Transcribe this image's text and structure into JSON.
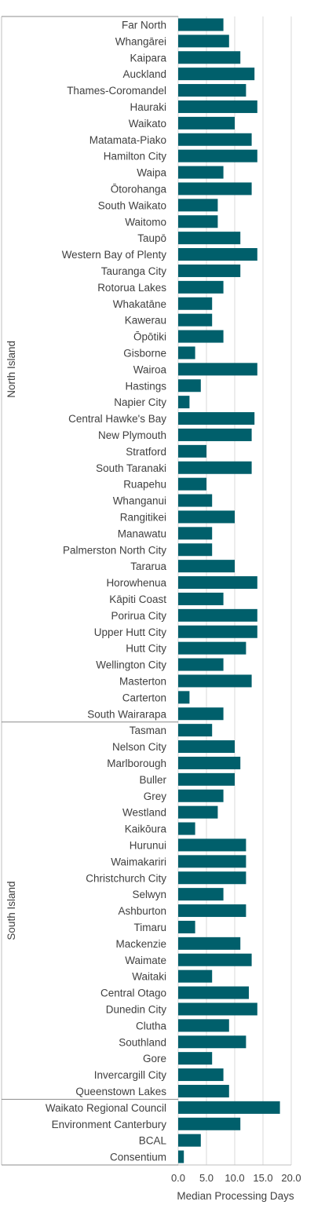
{
  "chart_data": {
    "type": "bar",
    "orientation": "horizontal",
    "xlabel": "Median Processing Days",
    "xlim": [
      0,
      20
    ],
    "xticks": [
      "0.0",
      "5.0",
      "10.0",
      "15.0",
      "20.0"
    ],
    "grid": true,
    "bar_color": "#005f6b",
    "groups": [
      {
        "label": "North Island",
        "items": [
          {
            "name": "Far North",
            "value": 8
          },
          {
            "name": "Whangārei",
            "value": 9
          },
          {
            "name": "Kaipara",
            "value": 11
          },
          {
            "name": "Auckland",
            "value": 13.5
          },
          {
            "name": "Thames-Coromandel",
            "value": 12
          },
          {
            "name": "Hauraki",
            "value": 14
          },
          {
            "name": "Waikato",
            "value": 10
          },
          {
            "name": "Matamata-Piako",
            "value": 13
          },
          {
            "name": "Hamilton City",
            "value": 14
          },
          {
            "name": "Waipa",
            "value": 8
          },
          {
            "name": "Ōtorohanga",
            "value": 13
          },
          {
            "name": "South Waikato",
            "value": 7
          },
          {
            "name": "Waitomo",
            "value": 7
          },
          {
            "name": "Taupō",
            "value": 11
          },
          {
            "name": "Western Bay of Plenty",
            "value": 14
          },
          {
            "name": "Tauranga City",
            "value": 11
          },
          {
            "name": "Rotorua Lakes",
            "value": 8
          },
          {
            "name": "Whakatāne",
            "value": 6
          },
          {
            "name": "Kawerau",
            "value": 6
          },
          {
            "name": "Ōpōtiki",
            "value": 8
          },
          {
            "name": "Gisborne",
            "value": 3
          },
          {
            "name": "Wairoa",
            "value": 14
          },
          {
            "name": "Hastings",
            "value": 4
          },
          {
            "name": "Napier City",
            "value": 2
          },
          {
            "name": "Central Hawke's Bay",
            "value": 13.5
          },
          {
            "name": "New Plymouth",
            "value": 13
          },
          {
            "name": "Stratford",
            "value": 5
          },
          {
            "name": "South Taranaki",
            "value": 13
          },
          {
            "name": "Ruapehu",
            "value": 5
          },
          {
            "name": "Whanganui",
            "value": 6
          },
          {
            "name": "Rangitikei",
            "value": 10
          },
          {
            "name": "Manawatu",
            "value": 6
          },
          {
            "name": "Palmerston North City",
            "value": 6
          },
          {
            "name": "Tararua",
            "value": 10
          },
          {
            "name": "Horowhenua",
            "value": 14
          },
          {
            "name": "Kāpiti Coast",
            "value": 8
          },
          {
            "name": "Porirua City",
            "value": 14
          },
          {
            "name": "Upper Hutt City",
            "value": 14
          },
          {
            "name": "Hutt City",
            "value": 12
          },
          {
            "name": "Wellington City",
            "value": 8
          },
          {
            "name": "Masterton",
            "value": 13
          },
          {
            "name": "Carterton",
            "value": 2
          },
          {
            "name": "South Wairarapa",
            "value": 8
          }
        ]
      },
      {
        "label": "South Island",
        "items": [
          {
            "name": "Tasman",
            "value": 6
          },
          {
            "name": "Nelson City",
            "value": 10
          },
          {
            "name": "Marlborough",
            "value": 11
          },
          {
            "name": "Buller",
            "value": 10
          },
          {
            "name": "Grey",
            "value": 8
          },
          {
            "name": "Westland",
            "value": 7
          },
          {
            "name": "Kaikōura",
            "value": 3
          },
          {
            "name": "Hurunui",
            "value": 12
          },
          {
            "name": "Waimakariri",
            "value": 12
          },
          {
            "name": "Christchurch City",
            "value": 12
          },
          {
            "name": "Selwyn",
            "value": 8
          },
          {
            "name": "Ashburton",
            "value": 12
          },
          {
            "name": "Timaru",
            "value": 3
          },
          {
            "name": "Mackenzie",
            "value": 11
          },
          {
            "name": "Waimate",
            "value": 13
          },
          {
            "name": "Waitaki",
            "value": 6
          },
          {
            "name": "Central Otago",
            "value": 12.5
          },
          {
            "name": "Dunedin City",
            "value": 14
          },
          {
            "name": "Clutha",
            "value": 9
          },
          {
            "name": "Southland",
            "value": 12
          },
          {
            "name": "Gore",
            "value": 6
          },
          {
            "name": "Invercargill City",
            "value": 8
          },
          {
            "name": "Queenstown Lakes",
            "value": 9
          }
        ]
      },
      {
        "label": "",
        "items": [
          {
            "name": "Waikato Regional Council",
            "value": 18
          },
          {
            "name": "Environment Canterbury",
            "value": 11
          },
          {
            "name": "BCAL",
            "value": 4
          },
          {
            "name": "Consentium",
            "value": 1
          }
        ]
      }
    ]
  }
}
